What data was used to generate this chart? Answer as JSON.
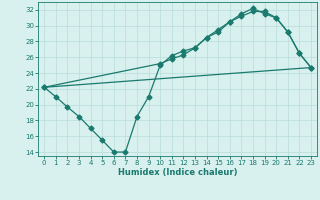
{
  "line1_x": [
    0,
    1,
    2,
    3,
    4,
    5,
    6,
    7,
    8,
    9,
    10,
    11,
    12,
    13,
    14,
    15,
    16,
    17,
    18,
    19,
    20,
    21,
    22,
    23
  ],
  "line1_y": [
    22.2,
    21.0,
    19.7,
    18.5,
    17.0,
    15.5,
    14.0,
    14.0,
    18.5,
    21.0,
    25.0,
    26.2,
    26.8,
    27.2,
    28.5,
    29.2,
    30.5,
    31.5,
    32.2,
    31.5,
    31.0,
    29.2,
    26.5,
    24.7
  ],
  "line2_x": [
    0,
    10,
    11,
    12,
    13,
    14,
    15,
    16,
    17,
    18,
    19,
    20,
    21,
    22,
    23
  ],
  "line2_y": [
    22.2,
    25.2,
    25.8,
    26.3,
    27.2,
    28.5,
    29.5,
    30.5,
    31.2,
    31.8,
    31.8,
    31.0,
    29.2,
    26.5,
    24.7
  ],
  "line3_x": [
    0,
    23
  ],
  "line3_y": [
    22.2,
    24.7
  ],
  "color": "#1a7a6e",
  "bg_color": "#d8f0ee",
  "grid_color": "#b8dcd8",
  "xlabel": "Humidex (Indice chaleur)",
  "xlim": [
    -0.5,
    23.5
  ],
  "ylim": [
    13.5,
    33
  ],
  "yticks": [
    14,
    16,
    18,
    20,
    22,
    24,
    26,
    28,
    30,
    32
  ],
  "xticks": [
    0,
    1,
    2,
    3,
    4,
    5,
    6,
    7,
    8,
    9,
    10,
    11,
    12,
    13,
    14,
    15,
    16,
    17,
    18,
    19,
    20,
    21,
    22,
    23
  ],
  "markersize": 2.5,
  "linewidth": 0.9
}
